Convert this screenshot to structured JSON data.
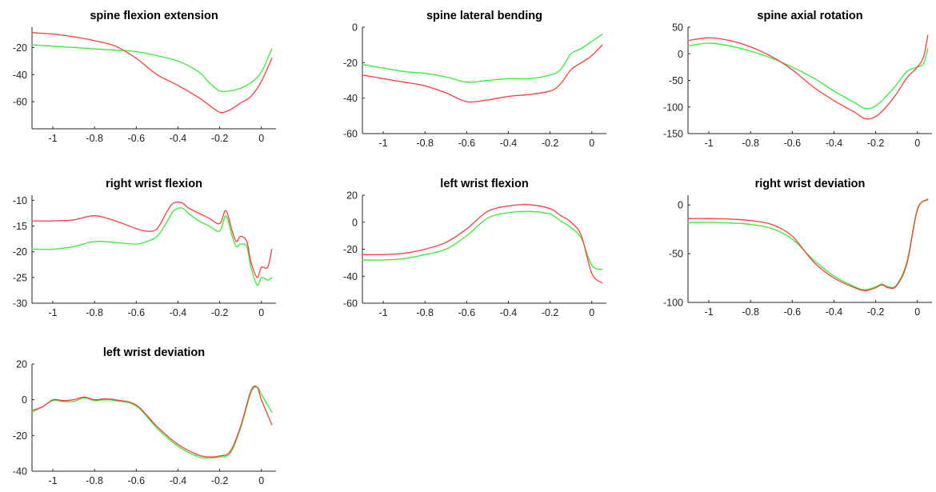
{
  "chart_data": [
    {
      "type": "line",
      "title": "spine flexion extension",
      "xlim": [
        -1.1,
        0.07
      ],
      "ylim": [
        -80,
        -5
      ],
      "xticks": [
        -1,
        -0.8,
        -0.6,
        -0.4,
        -0.2,
        0
      ],
      "yticks": [
        -60,
        -40,
        -20
      ],
      "series": [
        {
          "color": "#ff3b3b",
          "x": [
            -1.1,
            -1.0,
            -0.95,
            -0.9,
            -0.8,
            -0.7,
            -0.6,
            -0.5,
            -0.4,
            -0.3,
            -0.22,
            -0.19,
            -0.15,
            -0.1,
            -0.05,
            0,
            0.05
          ],
          "y": [
            -9,
            -10,
            -11,
            -12,
            -15,
            -19,
            -28,
            -40,
            -48,
            -57,
            -66,
            -68,
            -66,
            -61,
            -56,
            -45,
            -28
          ]
        },
        {
          "color": "#33ee33",
          "x": [
            -1.1,
            -1.0,
            -0.9,
            -0.8,
            -0.7,
            -0.6,
            -0.5,
            -0.4,
            -0.3,
            -0.25,
            -0.2,
            -0.15,
            -0.1,
            -0.05,
            0,
            0.05
          ],
          "y": [
            -18,
            -19,
            -20,
            -21,
            -22,
            -23,
            -26,
            -30,
            -38,
            -46,
            -52,
            -52,
            -50,
            -46,
            -38,
            -21
          ]
        }
      ]
    },
    {
      "type": "line",
      "title": "spine lateral bending",
      "xlim": [
        -1.1,
        0.07
      ],
      "ylim": [
        -60,
        0
      ],
      "xticks": [
        -1,
        -0.8,
        -0.6,
        -0.4,
        -0.2,
        0
      ],
      "yticks": [
        -60,
        -40,
        -20,
        0
      ],
      "series": [
        {
          "color": "#ff3b3b",
          "x": [
            -1.1,
            -1.0,
            -0.9,
            -0.8,
            -0.7,
            -0.6,
            -0.5,
            -0.4,
            -0.3,
            -0.2,
            -0.15,
            -0.1,
            -0.05,
            0,
            0.05
          ],
          "y": [
            -27,
            -29,
            -31,
            -33,
            -37,
            -42,
            -41,
            -39,
            -38,
            -36,
            -32,
            -24,
            -20,
            -16,
            -10
          ]
        },
        {
          "color": "#33ee33",
          "x": [
            -1.1,
            -1.0,
            -0.9,
            -0.8,
            -0.7,
            -0.6,
            -0.5,
            -0.4,
            -0.3,
            -0.2,
            -0.15,
            -0.1,
            -0.05,
            0,
            0.05
          ],
          "y": [
            -21,
            -23,
            -25,
            -26,
            -28,
            -31,
            -30,
            -29,
            -29,
            -27,
            -24,
            -15,
            -12,
            -8,
            -4
          ]
        }
      ]
    },
    {
      "type": "line",
      "title": "spine axial rotation",
      "xlim": [
        -1.1,
        0.07
      ],
      "ylim": [
        -150,
        50
      ],
      "xticks": [
        -1,
        -0.8,
        -0.6,
        -0.4,
        -0.2,
        0
      ],
      "yticks": [
        -150,
        -100,
        -50,
        0,
        50
      ],
      "series": [
        {
          "color": "#ff3b3b",
          "x": [
            -1.1,
            -1.0,
            -0.9,
            -0.8,
            -0.7,
            -0.6,
            -0.5,
            -0.4,
            -0.3,
            -0.25,
            -0.2,
            -0.15,
            -0.1,
            -0.05,
            0,
            0.03,
            0.05
          ],
          "y": [
            25,
            30,
            25,
            13,
            -5,
            -30,
            -62,
            -88,
            -110,
            -122,
            -118,
            -100,
            -75,
            -45,
            -25,
            -5,
            35
          ]
        },
        {
          "color": "#33ee33",
          "x": [
            -1.1,
            -1.0,
            -0.9,
            -0.8,
            -0.7,
            -0.6,
            -0.5,
            -0.4,
            -0.3,
            -0.25,
            -0.2,
            -0.15,
            -0.1,
            -0.05,
            0,
            0.03,
            0.05
          ],
          "y": [
            15,
            20,
            15,
            5,
            -8,
            -25,
            -45,
            -70,
            -92,
            -103,
            -98,
            -80,
            -58,
            -33,
            -25,
            -18,
            10
          ]
        }
      ]
    },
    {
      "type": "line",
      "title": "right wrist flexion",
      "xlim": [
        -1.1,
        0.07
      ],
      "ylim": [
        -30,
        -9
      ],
      "xticks": [
        -1,
        -0.8,
        -0.6,
        -0.4,
        -0.2,
        0
      ],
      "yticks": [
        -30,
        -25,
        -20,
        -15,
        -10
      ],
      "series": [
        {
          "color": "#ff3b3b",
          "x": [
            -1.1,
            -1.0,
            -0.9,
            -0.8,
            -0.7,
            -0.6,
            -0.55,
            -0.5,
            -0.45,
            -0.42,
            -0.38,
            -0.35,
            -0.3,
            -0.25,
            -0.2,
            -0.17,
            -0.14,
            -0.12,
            -0.1,
            -0.07,
            -0.05,
            -0.02,
            0,
            0.03,
            0.05
          ],
          "y": [
            -14,
            -14,
            -13.8,
            -13,
            -14,
            -15.5,
            -16,
            -15.5,
            -12,
            -10.5,
            -10.5,
            -11.5,
            -12.5,
            -13.5,
            -14.5,
            -12,
            -16,
            -18,
            -17,
            -18,
            -22,
            -25,
            -23,
            -23,
            -19.5
          ]
        },
        {
          "color": "#33ee33",
          "x": [
            -1.1,
            -1.0,
            -0.9,
            -0.8,
            -0.7,
            -0.6,
            -0.55,
            -0.5,
            -0.45,
            -0.42,
            -0.38,
            -0.35,
            -0.3,
            -0.25,
            -0.2,
            -0.17,
            -0.14,
            -0.12,
            -0.1,
            -0.07,
            -0.05,
            -0.02,
            0,
            0.03,
            0.05
          ],
          "y": [
            -19.5,
            -19.5,
            -19,
            -18,
            -18.2,
            -18.5,
            -18,
            -17,
            -14,
            -12,
            -11.5,
            -12.5,
            -14,
            -15,
            -16,
            -13,
            -17,
            -19,
            -18.5,
            -19,
            -23,
            -26.5,
            -25,
            -25.5,
            -25
          ]
        }
      ]
    },
    {
      "type": "line",
      "title": "left wrist flexion",
      "xlim": [
        -1.1,
        0.07
      ],
      "ylim": [
        -60,
        20
      ],
      "xticks": [
        -1,
        -0.8,
        -0.6,
        -0.4,
        -0.2,
        0
      ],
      "yticks": [
        -60,
        -40,
        -20,
        0,
        20
      ],
      "series": [
        {
          "color": "#ff3b3b",
          "x": [
            -1.1,
            -1.0,
            -0.9,
            -0.8,
            -0.7,
            -0.6,
            -0.5,
            -0.4,
            -0.3,
            -0.2,
            -0.15,
            -0.1,
            -0.05,
            0,
            0.05
          ],
          "y": [
            -24,
            -24,
            -23,
            -20,
            -15,
            -5,
            8,
            12,
            13,
            10,
            5,
            0,
            -10,
            -38,
            -45
          ]
        },
        {
          "color": "#33ee33",
          "x": [
            -1.1,
            -1.0,
            -0.9,
            -0.8,
            -0.7,
            -0.6,
            -0.5,
            -0.4,
            -0.3,
            -0.2,
            -0.15,
            -0.1,
            -0.05,
            0,
            0.05
          ],
          "y": [
            -28,
            -28,
            -27,
            -24,
            -20,
            -10,
            3,
            7,
            8,
            6,
            1,
            -4,
            -12,
            -32,
            -35
          ]
        }
      ]
    },
    {
      "type": "line",
      "title": "right wrist deviation",
      "xlim": [
        -1.1,
        0.07
      ],
      "ylim": [
        -100,
        10
      ],
      "xticks": [
        -1,
        -0.8,
        -0.6,
        -0.4,
        -0.2,
        0
      ],
      "yticks": [
        -100,
        -50,
        0
      ],
      "series": [
        {
          "color": "#ff3b3b",
          "x": [
            -1.1,
            -1.0,
            -0.9,
            -0.8,
            -0.7,
            -0.6,
            -0.5,
            -0.4,
            -0.3,
            -0.25,
            -0.2,
            -0.17,
            -0.14,
            -0.1,
            -0.05,
            0,
            0.05
          ],
          "y": [
            -14,
            -14,
            -14.5,
            -16,
            -20,
            -32,
            -58,
            -75,
            -85,
            -88,
            -85,
            -82,
            -85,
            -83,
            -60,
            -5,
            6
          ]
        },
        {
          "color": "#33ee33",
          "x": [
            -1.1,
            -1.0,
            -0.9,
            -0.8,
            -0.7,
            -0.6,
            -0.5,
            -0.4,
            -0.3,
            -0.25,
            -0.2,
            -0.17,
            -0.14,
            -0.1,
            -0.05,
            0,
            0.05
          ],
          "y": [
            -18,
            -18,
            -18.5,
            -20,
            -24,
            -35,
            -56,
            -73,
            -84,
            -87,
            -84,
            -81,
            -84,
            -82,
            -58,
            -4,
            5
          ]
        }
      ]
    },
    {
      "type": "line",
      "title": "left wrist deviation",
      "xlim": [
        -1.1,
        0.07
      ],
      "ylim": [
        -40,
        20
      ],
      "xticks": [
        -1,
        -0.8,
        -0.6,
        -0.4,
        -0.2,
        0
      ],
      "yticks": [
        -40,
        -20,
        0,
        20
      ],
      "series": [
        {
          "color": "#ff3b3b",
          "x": [
            -1.1,
            -1.05,
            -1.0,
            -0.95,
            -0.9,
            -0.85,
            -0.8,
            -0.75,
            -0.7,
            -0.6,
            -0.5,
            -0.4,
            -0.3,
            -0.25,
            -0.2,
            -0.15,
            -0.1,
            -0.05,
            -0.02,
            0,
            0.05
          ],
          "y": [
            -6,
            -4,
            0,
            -0.5,
            0,
            1.5,
            0,
            0.5,
            0,
            -3,
            -15,
            -25,
            -31,
            -32,
            -31.5,
            -29,
            -15,
            5,
            7,
            0,
            -14
          ]
        },
        {
          "color": "#33ee33",
          "x": [
            -1.1,
            -1.05,
            -1.0,
            -0.95,
            -0.9,
            -0.85,
            -0.8,
            -0.75,
            -0.7,
            -0.6,
            -0.5,
            -0.4,
            -0.3,
            -0.25,
            -0.2,
            -0.15,
            -0.1,
            -0.05,
            -0.02,
            0,
            0.05
          ],
          "y": [
            -7,
            -4,
            -0.5,
            -1,
            -1,
            1,
            -0.5,
            0,
            -0.5,
            -3.5,
            -16,
            -26,
            -32,
            -32.5,
            -32,
            -30,
            -16,
            4,
            7,
            3,
            -7
          ]
        }
      ]
    }
  ]
}
